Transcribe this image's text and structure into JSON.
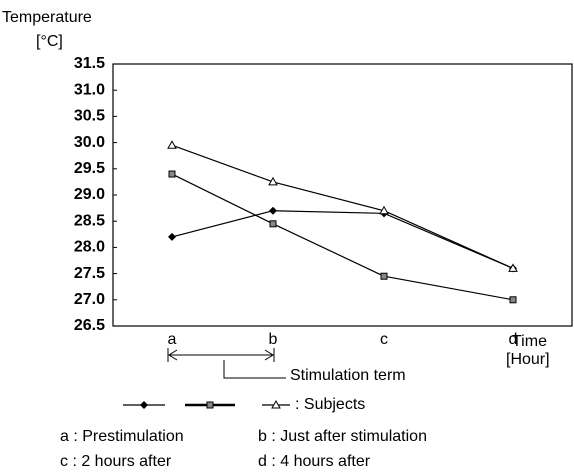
{
  "chart_data": {
    "type": "line",
    "y_label": "Temperature",
    "y_unit": "[°C]",
    "x_label": "Time",
    "x_unit": "[Hour]",
    "categories": [
      "a",
      "b",
      "c",
      "d"
    ],
    "series": [
      {
        "marker": "diamond",
        "color": "#000000",
        "values": [
          28.2,
          28.7,
          28.65,
          27.6
        ]
      },
      {
        "marker": "square",
        "color": "#000000",
        "values": [
          29.4,
          28.45,
          27.45,
          27.0
        ]
      },
      {
        "marker": "triangle",
        "color": "#000000",
        "values": [
          29.95,
          29.25,
          28.7,
          27.6
        ]
      }
    ],
    "legend_label": ": Subjects",
    "ylim": [
      26.5,
      31.5
    ],
    "yticks": [
      {
        "value": 26.5,
        "label": "26.5"
      },
      {
        "value": 27,
        "label": "27.0"
      },
      {
        "value": 27.5,
        "label": "27.5"
      },
      {
        "value": 28,
        "label": "28.0"
      },
      {
        "value": 28.5,
        "label": "28.5"
      },
      {
        "value": 29,
        "label": "29.0"
      },
      {
        "value": 29.5,
        "label": "29.5"
      },
      {
        "value": 30,
        "label": "30.0"
      },
      {
        "value": 30.5,
        "label": "30.5"
      },
      {
        "value": 31,
        "label": "31.0"
      },
      {
        "value": 31.5,
        "label": "31.5"
      }
    ],
    "stimulation_label": "Stimulation term",
    "notes": [
      "a : Prestimulation",
      "b : Just after stimulation",
      "c : 2 hours after",
      "d : 4 hours after"
    ]
  }
}
